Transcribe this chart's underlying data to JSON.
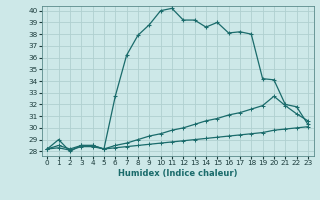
{
  "title": "",
  "xlabel": "Humidex (Indice chaleur)",
  "bg_color": "#cde8e8",
  "grid_color": "#b0d0d0",
  "line_color": "#1a6b6b",
  "xlim": [
    -0.5,
    23.5
  ],
  "ylim": [
    27.6,
    40.4
  ],
  "xticks": [
    0,
    1,
    2,
    3,
    4,
    5,
    6,
    7,
    8,
    9,
    10,
    11,
    12,
    13,
    14,
    15,
    16,
    17,
    18,
    19,
    20,
    21,
    22,
    23
  ],
  "yticks": [
    28,
    29,
    30,
    31,
    32,
    33,
    34,
    35,
    36,
    37,
    38,
    39,
    40
  ],
  "line1_x": [
    0,
    1,
    2,
    3,
    4,
    5,
    6,
    7,
    8,
    9,
    10,
    11,
    12,
    13,
    14,
    15,
    16,
    17,
    18,
    19,
    20,
    21,
    22,
    23
  ],
  "line1_y": [
    28.2,
    29.0,
    28.0,
    28.5,
    28.5,
    28.2,
    32.7,
    36.2,
    37.9,
    38.8,
    40.0,
    40.2,
    39.2,
    39.2,
    38.6,
    39.0,
    38.1,
    38.2,
    38.0,
    34.2,
    34.1,
    32.0,
    31.8,
    30.3
  ],
  "line2_x": [
    0,
    1,
    2,
    3,
    4,
    5,
    6,
    7,
    8,
    9,
    10,
    11,
    12,
    13,
    14,
    15,
    16,
    17,
    18,
    19,
    20,
    21,
    22,
    23
  ],
  "line2_y": [
    28.2,
    28.5,
    28.2,
    28.5,
    28.5,
    28.2,
    28.5,
    28.7,
    29.0,
    29.3,
    29.5,
    29.8,
    30.0,
    30.3,
    30.6,
    30.8,
    31.1,
    31.3,
    31.6,
    31.9,
    32.7,
    31.9,
    31.2,
    30.6
  ],
  "line3_x": [
    0,
    1,
    2,
    3,
    4,
    5,
    6,
    7,
    8,
    9,
    10,
    11,
    12,
    13,
    14,
    15,
    16,
    17,
    18,
    19,
    20,
    21,
    22,
    23
  ],
  "line3_y": [
    28.2,
    28.3,
    28.1,
    28.4,
    28.4,
    28.2,
    28.3,
    28.4,
    28.5,
    28.6,
    28.7,
    28.8,
    28.9,
    29.0,
    29.1,
    29.2,
    29.3,
    29.4,
    29.5,
    29.6,
    29.8,
    29.9,
    30.0,
    30.1
  ],
  "markersize": 2.5,
  "linewidth": 0.9,
  "xlabel_fontsize": 6.0,
  "tick_fontsize": 5.2
}
